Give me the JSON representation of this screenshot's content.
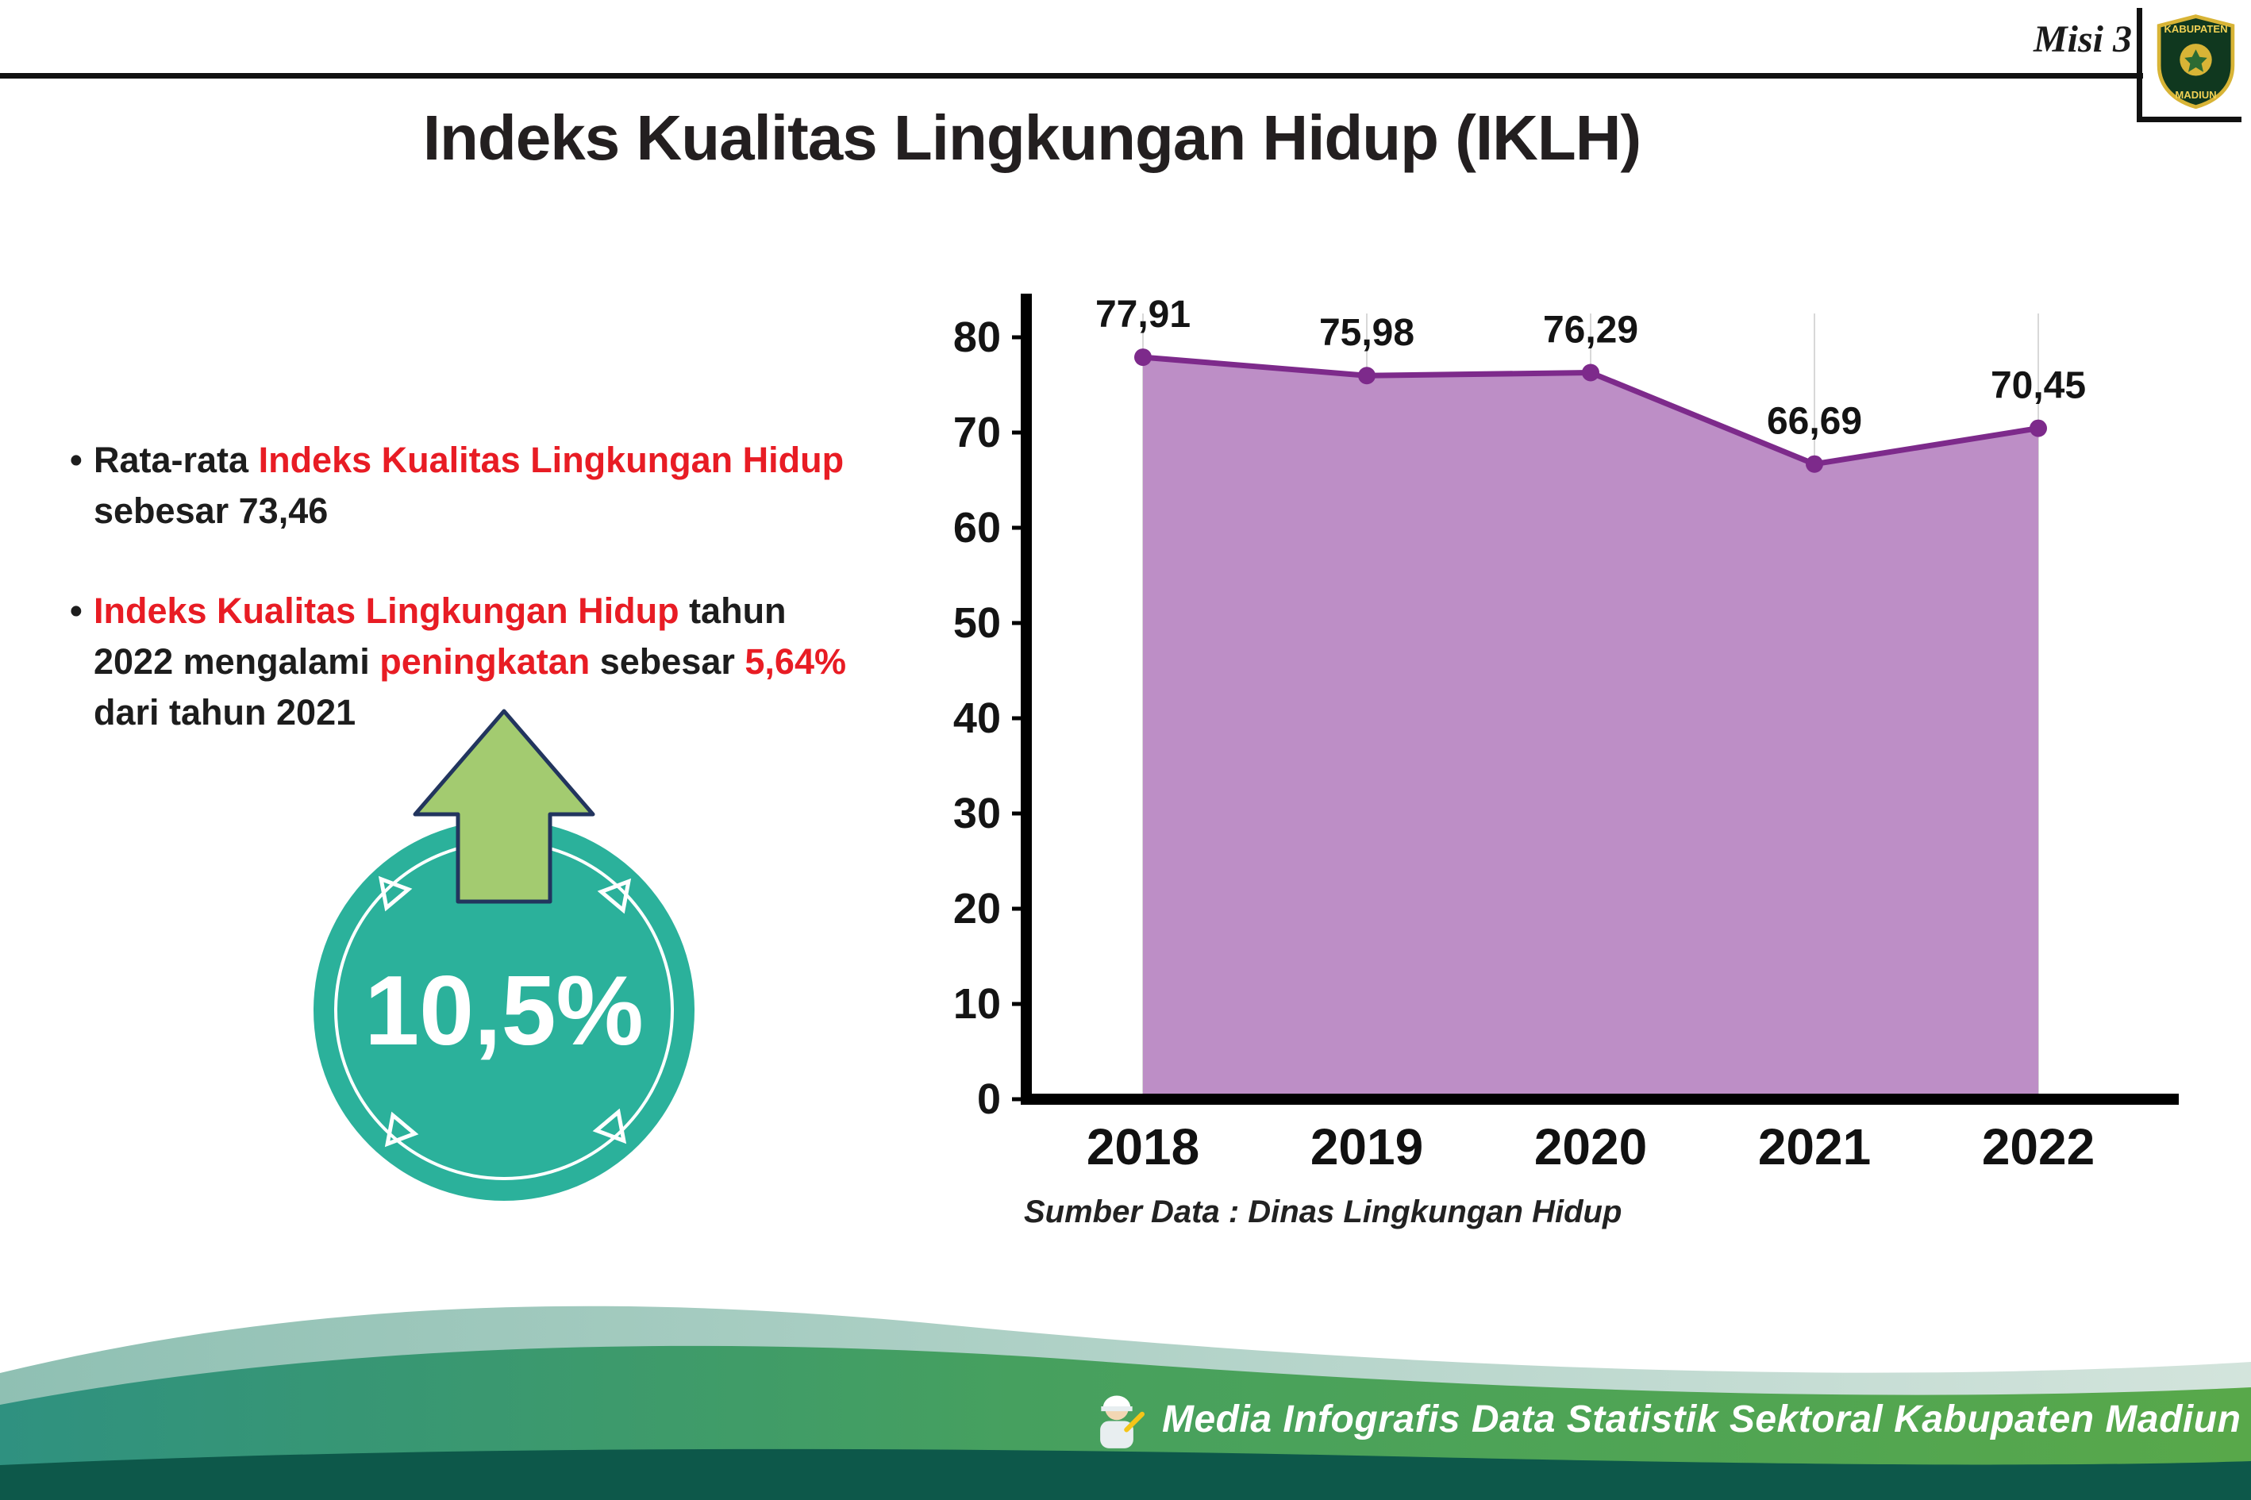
{
  "page": {
    "misi_label": "Misi 3",
    "title": "Indeks Kualitas Lingkungan Hidup (IKLH)"
  },
  "logo": {
    "top_text": "KABUPATEN",
    "bottom_text": "MADIUN"
  },
  "bullets": [
    {
      "segments": [
        {
          "text": "Rata-rata ",
          "highlight": false
        },
        {
          "text": "Indeks Kualitas Lingkungan Hidup",
          "highlight": true
        },
        {
          "text": " sebesar 73,46",
          "highlight": false
        }
      ]
    },
    {
      "segments": [
        {
          "text": "Indeks Kualitas Lingkungan Hidup",
          "highlight": true
        },
        {
          "text": " tahun 2022 mengalami ",
          "highlight": false
        },
        {
          "text": "peningkatan",
          "highlight": true
        },
        {
          "text": " sebesar ",
          "highlight": false
        },
        {
          "text": "5,64%",
          "highlight": true
        },
        {
          "text": " dari tahun 2021",
          "highlight": false
        }
      ]
    }
  ],
  "badge": {
    "value": "10,5%"
  },
  "chart_data": {
    "type": "area",
    "title": "Indeks Kualitas Lingkungan Hidup (IKLH)",
    "categories": [
      "2018",
      "2019",
      "2020",
      "2021",
      "2022"
    ],
    "values": [
      77.91,
      75.98,
      76.29,
      66.69,
      70.45
    ],
    "value_labels": [
      "77,91",
      "75,98",
      "76,29",
      "66,69",
      "70,45"
    ],
    "xlabel": "",
    "ylabel": "",
    "ylim": [
      0,
      80
    ],
    "yticks": [
      0,
      10,
      20,
      30,
      40,
      50,
      60,
      70,
      80
    ],
    "grid": "vertical",
    "legend": "none",
    "area_color": "#bd8ec6",
    "line_color": "#7d2a8b",
    "source": "Sumber Data : Dinas Lingkungan Hidup"
  },
  "footer": {
    "text": "Media Infografis Data Statistik Sektoral Kabupaten Madiun |"
  },
  "colors": {
    "highlight_red": "#e81c24",
    "badge_teal": "#2bb19b",
    "arrow_green": "#a3cb70",
    "footer_dark_green": "#0d584a"
  }
}
